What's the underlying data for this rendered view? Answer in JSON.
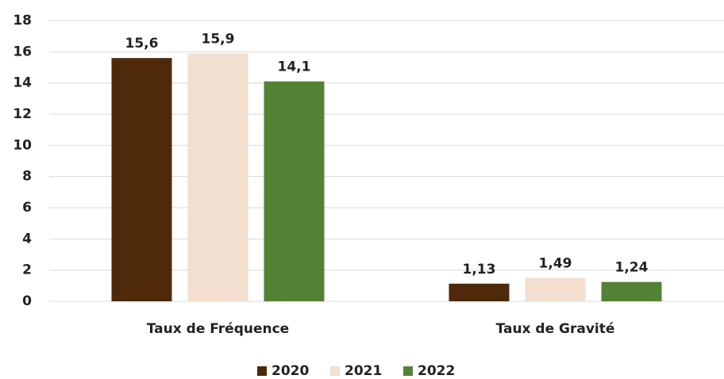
{
  "chart_data": {
    "type": "bar",
    "categories": [
      "Taux de Fréquence",
      "Taux de Gravité"
    ],
    "series": [
      {
        "name": "2020",
        "color": "#4e2a0a",
        "values": [
          15.6,
          1.13
        ],
        "value_labels": [
          "15,6",
          "1,13"
        ]
      },
      {
        "name": "2021",
        "color": "#f2dfd0",
        "values": [
          15.9,
          1.49
        ],
        "value_labels": [
          "15,9",
          "1,49"
        ]
      },
      {
        "name": "2022",
        "color": "#548235",
        "values": [
          14.1,
          1.24
        ],
        "value_labels": [
          "14,1",
          "1,24"
        ]
      }
    ],
    "ylim": [
      0,
      18
    ],
    "yticks": [
      0,
      2,
      4,
      6,
      8,
      10,
      12,
      14,
      16,
      18
    ],
    "grid": true,
    "legend": "bottom"
  }
}
